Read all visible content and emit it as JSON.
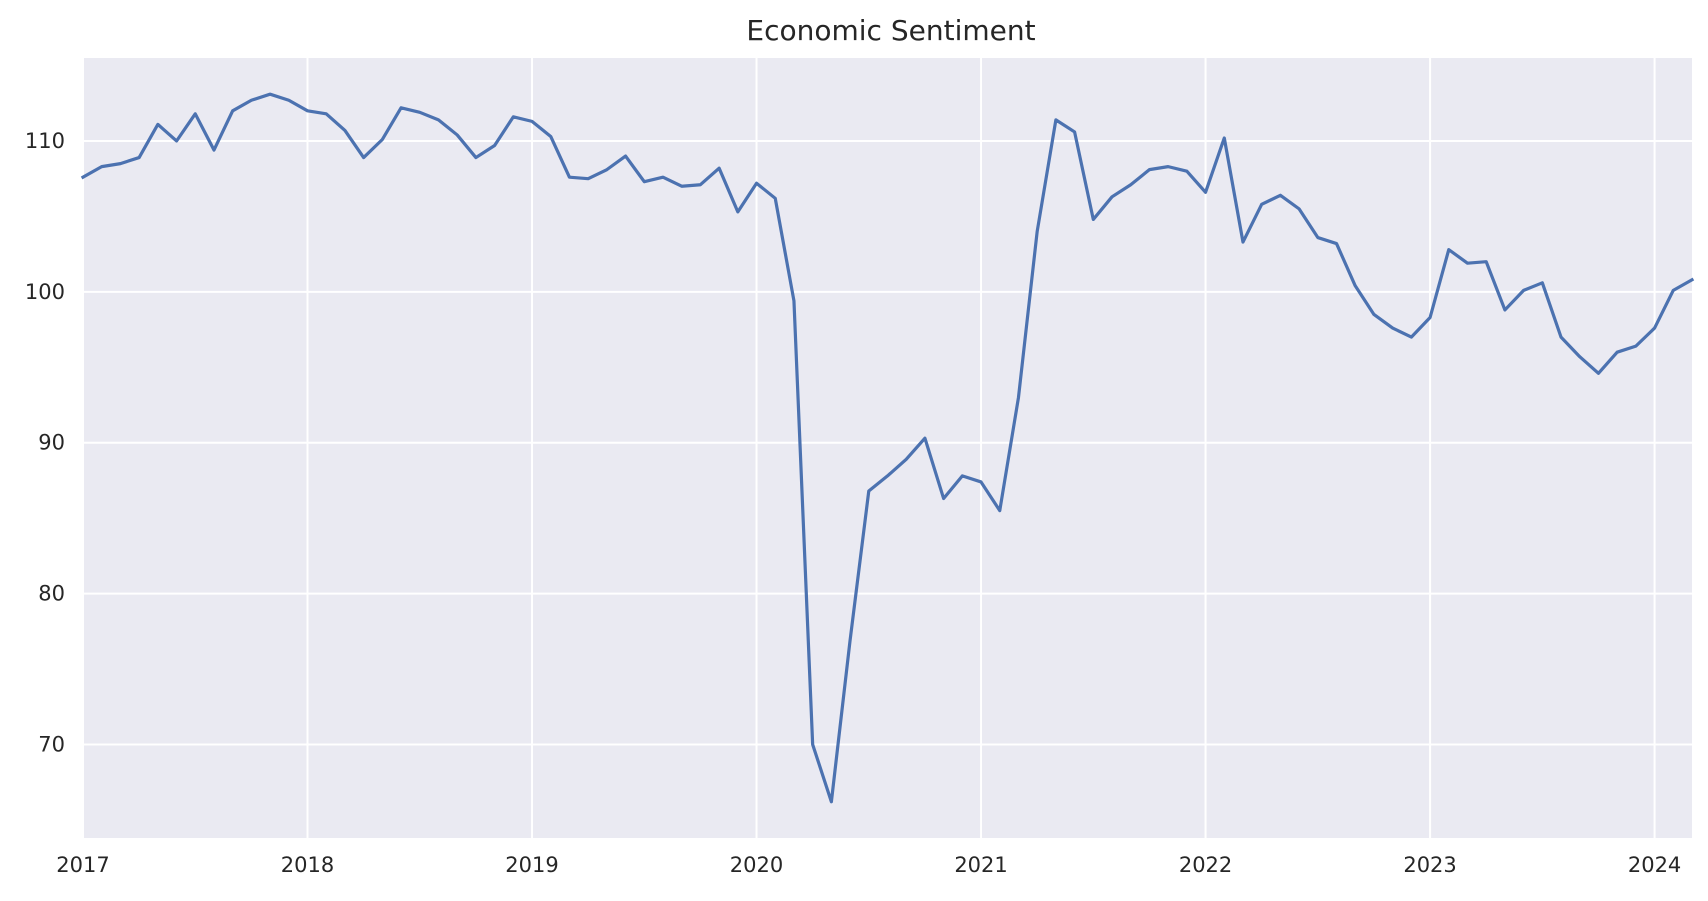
{
  "chart_data": {
    "type": "line",
    "title": "Economic Sentiment",
    "xlabel": "",
    "ylabel": "",
    "x_tick_labels": [
      "2017",
      "2018",
      "2019",
      "2020",
      "2021",
      "2022",
      "2023",
      "2024"
    ],
    "y_tick_labels": [
      "70",
      "80",
      "90",
      "100",
      "110"
    ],
    "y_ticks": [
      70,
      80,
      90,
      100,
      110
    ],
    "xlim": [
      "2017-01",
      "2024-03"
    ],
    "ylim": [
      63.8,
      115.5
    ],
    "grid": true,
    "colors": {
      "line": "#4c72b0",
      "background": "#eaeaf2",
      "grid": "#ffffff"
    },
    "series": [
      {
        "x": [
          "2017-01",
          "2017-02",
          "2017-03",
          "2017-04",
          "2017-05",
          "2017-06",
          "2017-07",
          "2017-08",
          "2017-09",
          "2017-10",
          "2017-11",
          "2017-12",
          "2018-01",
          "2018-02",
          "2018-03",
          "2018-04",
          "2018-05",
          "2018-06",
          "2018-07",
          "2018-08",
          "2018-09",
          "2018-10",
          "2018-11",
          "2018-12",
          "2019-01",
          "2019-02",
          "2019-03",
          "2019-04",
          "2019-05",
          "2019-06",
          "2019-07",
          "2019-08",
          "2019-09",
          "2019-10",
          "2019-11",
          "2019-12",
          "2020-01",
          "2020-02",
          "2020-03",
          "2020-04",
          "2020-05",
          "2020-06",
          "2020-07",
          "2020-08",
          "2020-09",
          "2020-10",
          "2020-11",
          "2020-12",
          "2021-01",
          "2021-02",
          "2021-03",
          "2021-04",
          "2021-05",
          "2021-06",
          "2021-07",
          "2021-08",
          "2021-09",
          "2021-10",
          "2021-11",
          "2021-12",
          "2022-01",
          "2022-02",
          "2022-03",
          "2022-04",
          "2022-05",
          "2022-06",
          "2022-07",
          "2022-08",
          "2022-09",
          "2022-10",
          "2022-11",
          "2022-12",
          "2023-01",
          "2023-02",
          "2023-03",
          "2023-04",
          "2023-05",
          "2023-06",
          "2023-07",
          "2023-08",
          "2023-09",
          "2023-10",
          "2023-11",
          "2023-12",
          "2024-01",
          "2024-02",
          "2024-03"
        ],
        "values": [
          107.6,
          108.3,
          108.5,
          108.9,
          111.1,
          110.0,
          111.8,
          109.4,
          112.0,
          112.7,
          113.1,
          112.7,
          112.0,
          111.8,
          110.7,
          108.9,
          110.1,
          112.2,
          111.9,
          111.4,
          110.4,
          108.9,
          109.7,
          111.6,
          111.3,
          110.3,
          107.6,
          107.5,
          108.1,
          109.0,
          107.3,
          107.6,
          107.0,
          107.1,
          108.2,
          105.3,
          107.2,
          106.2,
          99.4,
          70.0,
          66.2,
          76.9,
          86.8,
          87.8,
          88.9,
          90.3,
          86.3,
          87.8,
          87.4,
          85.5,
          93.0,
          104.0,
          111.4,
          110.6,
          104.8,
          106.3,
          107.1,
          108.1,
          108.3,
          108.0,
          106.6,
          110.2,
          103.3,
          105.8,
          106.4,
          105.5,
          103.6,
          103.2,
          100.4,
          98.5,
          97.6,
          97.0,
          98.3,
          102.8,
          101.9,
          102.0,
          98.8,
          100.1,
          100.6,
          97.0,
          95.7,
          94.6,
          96.0,
          96.4,
          97.6,
          100.1,
          100.8
        ]
      }
    ]
  }
}
